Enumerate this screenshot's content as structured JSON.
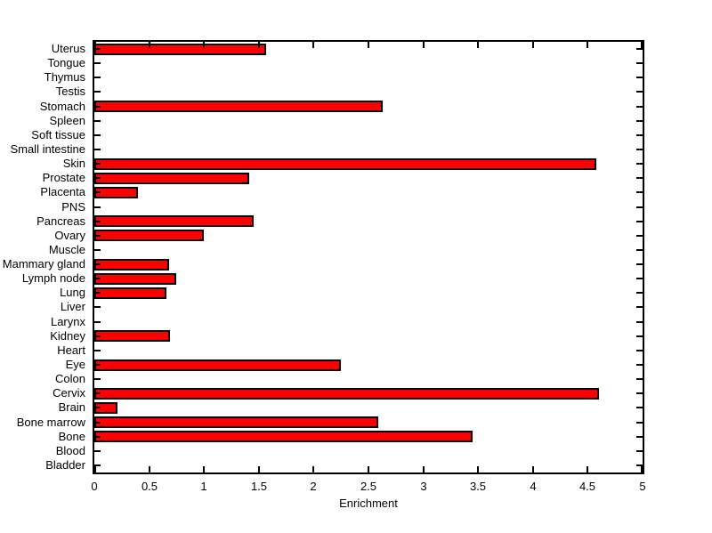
{
  "figure": {
    "background_color": "#FFFFFF",
    "bar_fill_color": "#FF0000",
    "bar_border_color": "#000000",
    "axis_color": "#000000"
  },
  "chart_data": {
    "type": "bar",
    "orientation": "horizontal",
    "title": "",
    "xlabel": "Enrichment",
    "ylabel": "",
    "xlim": [
      0,
      5
    ],
    "x_ticks": [
      0,
      0.5,
      1,
      1.5,
      2,
      2.5,
      3,
      3.5,
      4,
      4.5,
      5
    ],
    "x_tick_labels": [
      "0",
      "0.5",
      "1",
      "1.5",
      "2",
      "2.5",
      "3",
      "3.5",
      "4",
      "4.5",
      "5"
    ],
    "grid": false,
    "legend": null,
    "categories_top_to_bottom": [
      "Uterus",
      "Tongue",
      "Thymus",
      "Testis",
      "Stomach",
      "Spleen",
      "Soft tissue",
      "Small intestine",
      "Skin",
      "Prostate",
      "Placenta",
      "PNS",
      "Pancreas",
      "Ovary",
      "Muscle",
      "Mammary gland",
      "Lymph node",
      "Lung",
      "Liver",
      "Larynx",
      "Kidney",
      "Heart",
      "Eye",
      "Colon",
      "Cervix",
      "Brain",
      "Bone marrow",
      "Bone",
      "Blood",
      "Bladder"
    ],
    "values": [
      1.57,
      0,
      0,
      0,
      2.63,
      0,
      0,
      0,
      4.58,
      1.41,
      0.4,
      0,
      1.45,
      1.0,
      0,
      0.68,
      0.75,
      0.66,
      0,
      0,
      0.69,
      0,
      2.25,
      0,
      4.6,
      0.21,
      2.59,
      3.45,
      0,
      0
    ]
  }
}
